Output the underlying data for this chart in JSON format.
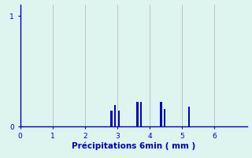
{
  "title": "",
  "xlabel": "Précipitations 6min ( mm )",
  "ylabel": "",
  "xlim": [
    0,
    7
  ],
  "ylim": [
    0,
    1.1
  ],
  "yticks": [
    0,
    1
  ],
  "xticks": [
    0,
    1,
    2,
    3,
    4,
    5,
    6
  ],
  "background_color": "#ddf4ef",
  "bar_color": "#0000bb",
  "axis_color": "#0000bb",
  "grid_color": "#bbbbbb",
  "bar_positions": [
    2.82,
    2.93,
    3.04,
    3.62,
    3.73,
    4.35,
    4.46,
    5.22
  ],
  "bar_heights": [
    0.14,
    0.19,
    0.14,
    0.22,
    0.22,
    0.22,
    0.16,
    0.18
  ],
  "bar_width": 0.055,
  "label_color": "#0000bb",
  "label_fontsize": 7.5,
  "tick_fontsize": 6.5
}
